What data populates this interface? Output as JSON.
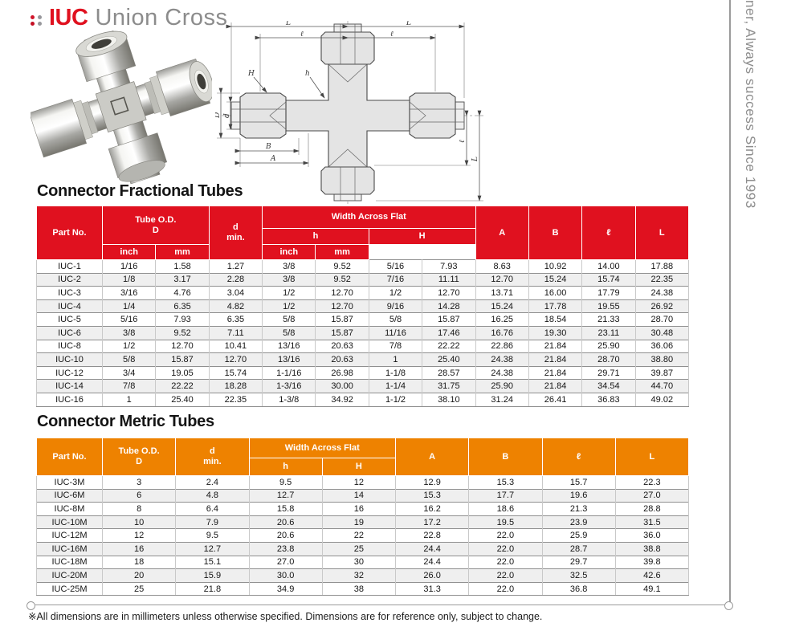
{
  "colors": {
    "accent_red": "#e0111f",
    "accent_orange": "#ee8200"
  },
  "logo": {
    "brand": "IUC",
    "name": "Union Cross"
  },
  "tagline": "ner, Always success Since 1993",
  "drawing": {
    "labels": {
      "L": "L",
      "l": "ℓ",
      "H": "H",
      "h": "h",
      "D": "D",
      "d": "d",
      "A": "A",
      "B": "B"
    }
  },
  "fractional": {
    "title": "Connector Fractional Tubes",
    "header": {
      "part_no": "Part No.",
      "tube_od": "Tube O.D.",
      "tube_od_d": "D",
      "d_min_1": "d",
      "d_min_2": "min.",
      "waf": "Width  Across Flat",
      "h": "h",
      "H": "H",
      "inch": "inch",
      "mm": "mm",
      "A": "A",
      "B": "B",
      "l": "ℓ",
      "L": "L"
    },
    "rows": [
      [
        "IUC-1",
        "1/16",
        "1.58",
        "1.27",
        "3/8",
        "9.52",
        "5/16",
        "7.93",
        "8.63",
        "10.92",
        "14.00",
        "17.88"
      ],
      [
        "IUC-2",
        "1/8",
        "3.17",
        "2.28",
        "3/8",
        "9.52",
        "7/16",
        "11.11",
        "12.70",
        "15.24",
        "15.74",
        "22.35"
      ],
      [
        "IUC-3",
        "3/16",
        "4.76",
        "3.04",
        "1/2",
        "12.70",
        "1/2",
        "12.70",
        "13.71",
        "16.00",
        "17.79",
        "24.38"
      ],
      [
        "IUC-4",
        "1/4",
        "6.35",
        "4.82",
        "1/2",
        "12.70",
        "9/16",
        "14.28",
        "15.24",
        "17.78",
        "19.55",
        "26.92"
      ],
      [
        "IUC-5",
        "5/16",
        "7.93",
        "6.35",
        "5/8",
        "15.87",
        "5/8",
        "15.87",
        "16.25",
        "18.54",
        "21.33",
        "28.70"
      ],
      [
        "IUC-6",
        "3/8",
        "9.52",
        "7.11",
        "5/8",
        "15.87",
        "11/16",
        "17.46",
        "16.76",
        "19.30",
        "23.11",
        "30.48"
      ],
      [
        "IUC-8",
        "1/2",
        "12.70",
        "10.41",
        "13/16",
        "20.63",
        "7/8",
        "22.22",
        "22.86",
        "21.84",
        "25.90",
        "36.06"
      ],
      [
        "IUC-10",
        "5/8",
        "15.87",
        "12.70",
        "13/16",
        "20.63",
        "1",
        "25.40",
        "24.38",
        "21.84",
        "28.70",
        "38.80"
      ],
      [
        "IUC-12",
        "3/4",
        "19.05",
        "15.74",
        "1-1/16",
        "26.98",
        "1-1/8",
        "28.57",
        "24.38",
        "21.84",
        "29.71",
        "39.87"
      ],
      [
        "IUC-14",
        "7/8",
        "22.22",
        "18.28",
        "1-3/16",
        "30.00",
        "1-1/4",
        "31.75",
        "25.90",
        "21.84",
        "34.54",
        "44.70"
      ],
      [
        "IUC-16",
        "1",
        "25.40",
        "22.35",
        "1-3/8",
        "34.92",
        "1-1/2",
        "38.10",
        "31.24",
        "26.41",
        "36.83",
        "49.02"
      ]
    ]
  },
  "metric": {
    "title": "Connector Metric Tubes",
    "header": {
      "part_no": "Part No.",
      "tube_od": "Tube O.D.",
      "tube_od_d": "D",
      "d_min_1": "d",
      "d_min_2": "min.",
      "waf": "Width  Across Flat",
      "h": "h",
      "H": "H",
      "A": "A",
      "B": "B",
      "l": "ℓ",
      "L": "L"
    },
    "rows": [
      [
        "IUC-3M",
        "3",
        "2.4",
        "9.5",
        "12",
        "12.9",
        "15.3",
        "15.7",
        "22.3"
      ],
      [
        "IUC-6M",
        "6",
        "4.8",
        "12.7",
        "14",
        "15.3",
        "17.7",
        "19.6",
        "27.0"
      ],
      [
        "IUC-8M",
        "8",
        "6.4",
        "15.8",
        "16",
        "16.2",
        "18.6",
        "21.3",
        "28.8"
      ],
      [
        "IUC-10M",
        "10",
        "7.9",
        "20.6",
        "19",
        "17.2",
        "19.5",
        "23.9",
        "31.5"
      ],
      [
        "IUC-12M",
        "12",
        "9.5",
        "20.6",
        "22",
        "22.8",
        "22.0",
        "25.9",
        "36.0"
      ],
      [
        "IUC-16M",
        "16",
        "12.7",
        "23.8",
        "25",
        "24.4",
        "22.0",
        "28.7",
        "38.8"
      ],
      [
        "IUC-18M",
        "18",
        "15.1",
        "27.0",
        "30",
        "24.4",
        "22.0",
        "29.7",
        "39.8"
      ],
      [
        "IUC-20M",
        "20",
        "15.9",
        "30.0",
        "32",
        "26.0",
        "22.0",
        "32.5",
        "42.6"
      ],
      [
        "IUC-25M",
        "25",
        "21.8",
        "34.9",
        "38",
        "31.3",
        "22.0",
        "36.8",
        "49.1"
      ]
    ]
  },
  "footnote": "※All dimensions are in millimeters unless otherwise specified. Dimensions are for reference only, subject to change."
}
